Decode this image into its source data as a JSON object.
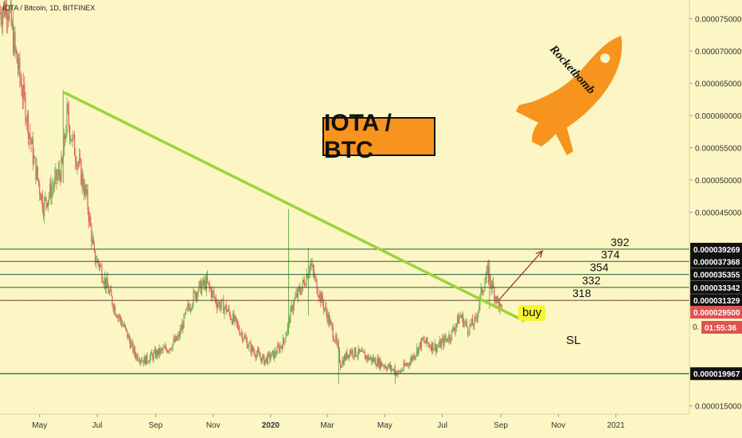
{
  "header": {
    "text": "IOTA / Bitcoin, 1D, BITFINEX"
  },
  "title_box": {
    "text": "IOTA / BTC"
  },
  "logo": {
    "text": "Rocketbomb"
  },
  "annotations": {
    "buy": "buy",
    "sl": "SL"
  },
  "levels": [
    {
      "label": "392",
      "price": 3.9269e-05,
      "tag": "0.000039269"
    },
    {
      "label": "374",
      "price": 3.7368e-05,
      "tag": "0.000037368"
    },
    {
      "label": "354",
      "price": 3.5355e-05,
      "tag": "0.000035355"
    },
    {
      "label": "332",
      "price": 3.3342e-05,
      "tag": "0.000033342"
    },
    {
      "label": "318",
      "price": 3.1329e-05,
      "tag": "0.000031329"
    }
  ],
  "stop_loss": {
    "price": 1.9967e-05,
    "tag": "0.000019967"
  },
  "current_price": {
    "price": 2.95e-05,
    "tag": "0.000029500",
    "countdown": "01:55:36",
    "countdown_prefix": "0."
  },
  "colors": {
    "background": "#fcf6c4",
    "trendline": "#9bd43a",
    "level_line": "#1b5e40",
    "candle_up": "#70b050",
    "candle_down": "#e06060",
    "current_tag": "#e05252",
    "arrow": "#9a3a2a",
    "title_bg": "#f7941d",
    "buy_bg": "#f5f533",
    "rocket": "#f7941d"
  },
  "chart_data": {
    "type": "candlestick",
    "symbol": "IOTA / Bitcoin",
    "interval": "1D",
    "exchange": "BITFINEX",
    "y_axis": {
      "min": 1.37e-05,
      "max": 7.79e-05,
      "ticks": [
        "0.000075000",
        "0.000070000",
        "0.000065000",
        "0.000060000",
        "0.000055000",
        "0.000050000",
        "0.000045000",
        "0.000015000"
      ],
      "tick_values": [
        7.5e-05,
        7e-05,
        6.5e-05,
        6e-05,
        5.5e-05,
        5e-05,
        4.5e-05,
        1.5e-05
      ]
    },
    "x_axis": {
      "labels": [
        "May",
        "Jul",
        "Sep",
        "Nov",
        "2020",
        "Mar",
        "May",
        "Jul",
        "Sep",
        "Nov",
        "2021"
      ],
      "label_dates": [
        "2019-05-01",
        "2019-07-01",
        "2019-09-01",
        "2019-11-01",
        "2020-01-01",
        "2020-03-01",
        "2020-05-01",
        "2020-07-01",
        "2020-09-01",
        "2020-11-01",
        "2021-01-01"
      ],
      "start": "2019-03-20",
      "end": "2021-03-20"
    },
    "price_path": [
      [
        "2019-03-20",
        7.6e-05
      ],
      [
        "2019-03-28",
        7.75e-05
      ],
      [
        "2019-04-05",
        7e-05
      ],
      [
        "2019-04-15",
        6.2e-05
      ],
      [
        "2019-04-25",
        5.3e-05
      ],
      [
        "2019-05-05",
        4.6e-05
      ],
      [
        "2019-05-15",
        4.9e-05
      ],
      [
        "2019-05-25",
        5.2e-05
      ],
      [
        "2019-05-30",
        6e-05
      ],
      [
        "2019-06-05",
        5.6e-05
      ],
      [
        "2019-06-12",
        5.2e-05
      ],
      [
        "2019-06-20",
        4.7e-05
      ],
      [
        "2019-06-28",
        3.8e-05
      ],
      [
        "2019-07-03",
        3.7e-05
      ],
      [
        "2019-07-10",
        3.4e-05
      ],
      [
        "2019-07-20",
        3e-05
      ],
      [
        "2019-07-30",
        2.7e-05
      ],
      [
        "2019-08-10",
        2.3e-05
      ],
      [
        "2019-08-20",
        2.2e-05
      ],
      [
        "2019-09-01",
        2.3e-05
      ],
      [
        "2019-09-15",
        2.4e-05
      ],
      [
        "2019-09-25",
        2.55e-05
      ],
      [
        "2019-10-05",
        3e-05
      ],
      [
        "2019-10-15",
        3.3e-05
      ],
      [
        "2019-10-25",
        3.4e-05
      ],
      [
        "2019-11-05",
        3.1e-05
      ],
      [
        "2019-11-15",
        3e-05
      ],
      [
        "2019-11-28",
        2.7e-05
      ],
      [
        "2019-12-10",
        2.4e-05
      ],
      [
        "2019-12-25",
        2.2e-05
      ],
      [
        "2020-01-05",
        2.3e-05
      ],
      [
        "2020-01-15",
        2.5e-05
      ],
      [
        "2020-01-25",
        3.1e-05
      ],
      [
        "2020-02-05",
        3.4e-05
      ],
      [
        "2020-02-12",
        3.7e-05
      ],
      [
        "2020-02-20",
        3.3e-05
      ],
      [
        "2020-03-01",
        2.9e-05
      ],
      [
        "2020-03-10",
        2.5e-05
      ],
      [
        "2020-03-15",
        2.15e-05
      ],
      [
        "2020-03-25",
        2.35e-05
      ],
      [
        "2020-04-05",
        2.3e-05
      ],
      [
        "2020-04-20",
        2.2e-05
      ],
      [
        "2020-05-05",
        2.1e-05
      ],
      [
        "2020-05-15",
        2e-05
      ],
      [
        "2020-05-28",
        2.2e-05
      ],
      [
        "2020-06-10",
        2.5e-05
      ],
      [
        "2020-06-25",
        2.4e-05
      ],
      [
        "2020-07-10",
        2.6e-05
      ],
      [
        "2020-07-20",
        2.9e-05
      ],
      [
        "2020-07-28",
        2.7e-05
      ],
      [
        "2020-08-05",
        2.8e-05
      ],
      [
        "2020-08-12",
        3.3e-05
      ],
      [
        "2020-08-18",
        3.55e-05
      ],
      [
        "2020-08-24",
        3.3e-05
      ],
      [
        "2020-08-30",
        3.05e-05
      ],
      [
        "2020-09-02",
        2.95e-05
      ]
    ],
    "spikes": [
      [
        "2019-05-26",
        6.4e-05,
        4.95e-05
      ],
      [
        "2020-01-20",
        4.55e-05,
        2.6e-05
      ],
      [
        "2020-02-10",
        3.95e-05,
        2.9e-05
      ],
      [
        "2020-08-20",
        3.75e-05,
        3e-05
      ],
      [
        "2020-03-13",
        2.55e-05,
        1.83e-05
      ],
      [
        "2020-05-12",
        2.15e-05,
        1.84e-05
      ]
    ],
    "trendline": {
      "from": [
        "2019-05-28",
        6.35e-05
      ],
      "to": [
        "2020-09-25",
        2.82e-05
      ]
    },
    "projection_arrow": {
      "from": [
        "2020-08-30",
        3.14e-05
      ],
      "to": [
        "2020-10-15",
        3.9e-05
      ]
    }
  }
}
